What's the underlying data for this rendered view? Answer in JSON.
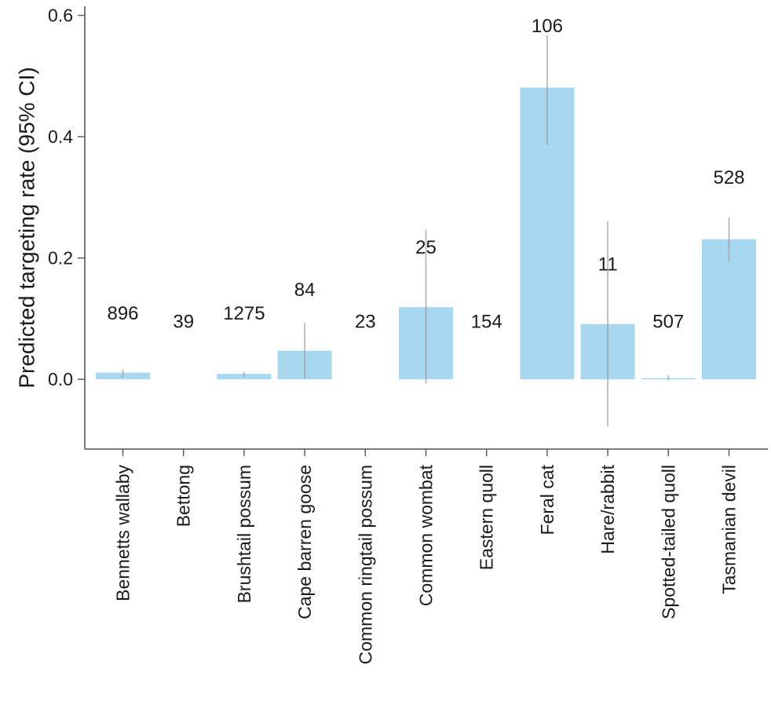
{
  "chart_data": {
    "type": "bar",
    "ylabel": "Predicted targeting rate (95% CI)",
    "xlabel": "",
    "ylim": [
      -0.115,
      0.615
    ],
    "yticks": [
      0.0,
      0.2,
      0.4,
      0.6
    ],
    "ytick_labels": [
      "0.0",
      "0.2",
      "0.4",
      "0.6"
    ],
    "grid": false,
    "bar_color": "#a8d8ef",
    "ci_color": "#999999",
    "categories": [
      "Bennetts wallaby",
      "Bettong",
      "Brushtail possum",
      "Cape barren goose",
      "Common ringtail possum",
      "Common wombat",
      "Eastern quoll",
      "Feral cat",
      "Hare/rabbit",
      "Spotted-tailed quoll",
      "Tasmanian devil"
    ],
    "values": [
      0.011,
      0.0,
      0.009,
      0.047,
      0.0,
      0.119,
      0.0,
      0.481,
      0.091,
      0.002,
      0.231
    ],
    "ci_lower": [
      0.003,
      null,
      0.004,
      0.001,
      null,
      -0.007,
      null,
      0.386,
      -0.078,
      -0.002,
      0.194
    ],
    "ci_upper": [
      0.016,
      null,
      0.012,
      0.093,
      null,
      0.247,
      null,
      0.567,
      0.261,
      0.007,
      0.267
    ],
    "labels": [
      "896",
      "39",
      "1275",
      "84",
      "23",
      "25",
      "154",
      "106",
      "11",
      "507",
      "528"
    ],
    "label_y": [
      0.108,
      0.095,
      0.108,
      0.147,
      0.095,
      0.217,
      0.095,
      0.582,
      0.189,
      0.095,
      0.332
    ]
  }
}
